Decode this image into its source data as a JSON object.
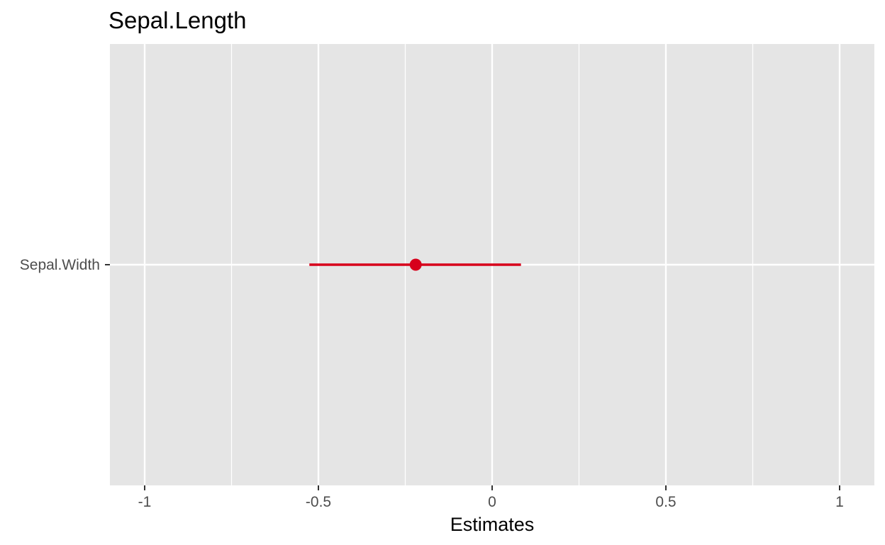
{
  "chart_data": {
    "type": "forest",
    "title": "Sepal.Length",
    "xlabel": "Estimates",
    "ylabel": "",
    "xlim": [
      -1.1,
      1.1
    ],
    "x_ticks": [
      -1,
      -0.5,
      0,
      0.5,
      1
    ],
    "x_tick_labels": [
      "-1",
      "-0.5",
      "0",
      "0.5",
      "1"
    ],
    "grid": true,
    "terms": [
      {
        "term": "Sepal.Width",
        "estimate": -0.22,
        "conf_low": -0.526,
        "conf_high": 0.083
      }
    ],
    "colors": {
      "panel_background": "#e5e5e5",
      "grid": "#ffffff",
      "estimate": "#d7001b"
    }
  }
}
